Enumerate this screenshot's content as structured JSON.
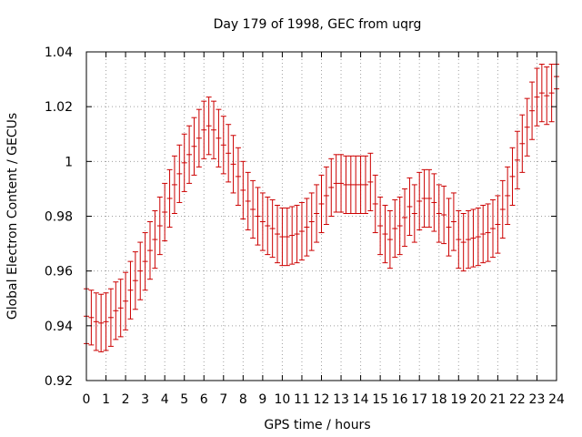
{
  "chart_data": {
    "type": "scatter",
    "style": "error-bars",
    "title": "Day 179 of 1998, GEC from uqrg",
    "xlabel": "GPS time / hours",
    "ylabel": "Global Electron Content / GECUs",
    "xlim": [
      0,
      24
    ],
    "ylim": [
      0.92,
      1.04
    ],
    "x_ticks": [
      0,
      1,
      2,
      3,
      4,
      5,
      6,
      7,
      8,
      9,
      10,
      11,
      12,
      13,
      14,
      15,
      16,
      17,
      18,
      19,
      20,
      21,
      22,
      23,
      24
    ],
    "y_ticks": [
      0.92,
      0.94,
      0.96,
      0.98,
      1.0,
      1.02,
      1.04
    ],
    "y_tick_labels": [
      "0.92",
      "0.94",
      "0.96",
      "0.98",
      "1",
      "1.02",
      "1.04"
    ],
    "grid": true,
    "series_color": "#cc0000",
    "series": [
      {
        "name": "GEC",
        "x": [
          0,
          0.25,
          0.5,
          0.75,
          1,
          1.25,
          1.5,
          1.75,
          2,
          2.25,
          2.5,
          2.75,
          3,
          3.25,
          3.5,
          3.75,
          4,
          4.25,
          4.5,
          4.75,
          5,
          5.25,
          5.5,
          5.75,
          6,
          6.25,
          6.5,
          6.75,
          7,
          7.25,
          7.5,
          7.75,
          8,
          8.25,
          8.5,
          8.75,
          9,
          9.25,
          9.5,
          9.75,
          10,
          10.25,
          10.5,
          10.75,
          11,
          11.25,
          11.5,
          11.75,
          12,
          12.25,
          12.5,
          12.75,
          13,
          13.25,
          13.5,
          13.75,
          14,
          14.25,
          14.5,
          14.75,
          15,
          15.25,
          15.5,
          15.75,
          16,
          16.25,
          16.5,
          16.75,
          17,
          17.25,
          17.5,
          17.75,
          18,
          18.25,
          18.5,
          18.75,
          19,
          19.25,
          19.5,
          19.75,
          20,
          20.25,
          20.5,
          20.75,
          21,
          21.25,
          21.5,
          21.75,
          22,
          22.25,
          22.5,
          22.75,
          23,
          23.25,
          23.5,
          23.75,
          24
        ],
        "y": [
          0.9435,
          0.943,
          0.9415,
          0.941,
          0.9415,
          0.943,
          0.9455,
          0.9465,
          0.949,
          0.953,
          0.9565,
          0.96,
          0.9635,
          0.9675,
          0.9715,
          0.9765,
          0.9815,
          0.9865,
          0.9915,
          0.9955,
          0.9995,
          1.0025,
          1.0055,
          1.0085,
          1.0115,
          1.013,
          1.0115,
          1.0085,
          1.006,
          1.003,
          0.999,
          0.9945,
          0.9895,
          0.9855,
          0.9825,
          0.98,
          0.978,
          0.9765,
          0.9755,
          0.9735,
          0.9725,
          0.9725,
          0.973,
          0.9735,
          0.9745,
          0.976,
          0.978,
          0.981,
          0.9845,
          0.9875,
          0.9905,
          0.992,
          0.992,
          0.9915,
          0.9915,
          0.9915,
          0.9915,
          0.9915,
          0.9925,
          0.9845,
          0.9765,
          0.9735,
          0.9715,
          0.9755,
          0.9765,
          0.9795,
          0.9835,
          0.981,
          0.9855,
          0.9865,
          0.9865,
          0.985,
          0.981,
          0.9805,
          0.976,
          0.978,
          0.9715,
          0.9705,
          0.9715,
          0.972,
          0.9725,
          0.9735,
          0.974,
          0.9755,
          0.977,
          0.9825,
          0.9875,
          0.9945,
          1.0005,
          1.0065,
          1.0125,
          1.0185,
          1.0235,
          1.025,
          1.024,
          1.025,
          1.031
        ],
        "err": [
          0.01,
          0.01,
          0.0105,
          0.0105,
          0.0105,
          0.0105,
          0.0105,
          0.0105,
          0.0105,
          0.0105,
          0.0105,
          0.0105,
          0.0105,
          0.0105,
          0.0105,
          0.0105,
          0.0105,
          0.0105,
          0.0105,
          0.0105,
          0.0105,
          0.0105,
          0.0105,
          0.0105,
          0.0105,
          0.0105,
          0.0105,
          0.0105,
          0.0105,
          0.0105,
          0.0105,
          0.0105,
          0.0105,
          0.0105,
          0.0105,
          0.0105,
          0.0105,
          0.0105,
          0.0105,
          0.0105,
          0.0105,
          0.0105,
          0.0105,
          0.0105,
          0.0105,
          0.0105,
          0.0105,
          0.0105,
          0.0105,
          0.0105,
          0.0105,
          0.0105,
          0.0105,
          0.0105,
          0.0105,
          0.0105,
          0.0105,
          0.0105,
          0.0105,
          0.0105,
          0.0105,
          0.0105,
          0.0105,
          0.0105,
          0.0105,
          0.0105,
          0.0105,
          0.0105,
          0.0105,
          0.0105,
          0.0105,
          0.0105,
          0.0105,
          0.0105,
          0.0105,
          0.0105,
          0.0105,
          0.0105,
          0.0105,
          0.0105,
          0.0105,
          0.0105,
          0.0105,
          0.0105,
          0.0105,
          0.0105,
          0.0105,
          0.0105,
          0.0105,
          0.0105,
          0.0105,
          0.0105,
          0.0105,
          0.0105,
          0.0105,
          0.0105,
          0.0045
        ]
      }
    ]
  }
}
